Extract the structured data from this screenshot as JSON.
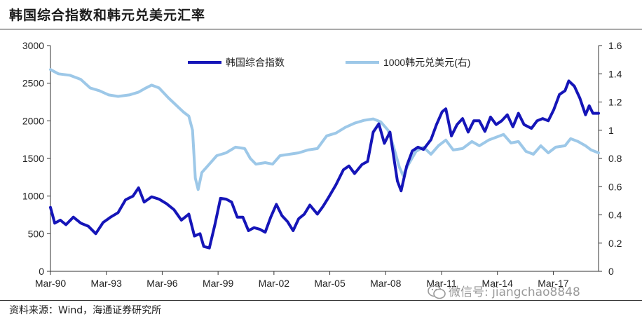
{
  "title": "韩国综合指数和韩元兑美元汇率",
  "source": "资料来源：Wind，海通证券研究所",
  "watermark": "微信号: jiangchao8848",
  "chart_data": {
    "type": "line",
    "x_ticks": [
      "Mar-90",
      "Mar-93",
      "Mar-96",
      "Mar-99",
      "Mar-02",
      "Mar-05",
      "Mar-08",
      "Mar-11",
      "Mar-14",
      "Mar-17"
    ],
    "x_tick_years": [
      1990.17,
      1993.17,
      1996.17,
      1999.17,
      2002.17,
      2005.17,
      2008.17,
      2011.17,
      2014.17,
      2017.17
    ],
    "xlim": [
      1990.17,
      2019.6
    ],
    "y_left": {
      "ticks": [
        "0",
        "500",
        "1000",
        "1500",
        "2000",
        "2500",
        "3000"
      ],
      "range": [
        0,
        3000
      ]
    },
    "y_right": {
      "ticks": [
        "0",
        "0.2",
        "0.4",
        "0.6",
        "0.8",
        "1",
        "1.2",
        "1.4",
        "1.6"
      ],
      "range": [
        0,
        1.6
      ]
    },
    "legend": {
      "position": "top-center"
    },
    "series": [
      {
        "name": "韩国综合指数",
        "axis": "left",
        "color": "#1515b8",
        "points": [
          [
            1990.17,
            850
          ],
          [
            1990.4,
            640
          ],
          [
            1990.7,
            680
          ],
          [
            1991.0,
            620
          ],
          [
            1991.4,
            720
          ],
          [
            1991.8,
            640
          ],
          [
            1992.2,
            600
          ],
          [
            1992.6,
            500
          ],
          [
            1993.0,
            650
          ],
          [
            1993.4,
            720
          ],
          [
            1993.8,
            780
          ],
          [
            1994.2,
            950
          ],
          [
            1994.6,
            1000
          ],
          [
            1994.9,
            1110
          ],
          [
            1995.2,
            920
          ],
          [
            1995.6,
            990
          ],
          [
            1996.0,
            960
          ],
          [
            1996.4,
            900
          ],
          [
            1996.8,
            820
          ],
          [
            1997.2,
            680
          ],
          [
            1997.6,
            760
          ],
          [
            1997.9,
            470
          ],
          [
            1998.2,
            500
          ],
          [
            1998.4,
            330
          ],
          [
            1998.7,
            310
          ],
          [
            1999.0,
            620
          ],
          [
            1999.3,
            970
          ],
          [
            1999.6,
            960
          ],
          [
            1999.9,
            920
          ],
          [
            2000.2,
            720
          ],
          [
            2000.5,
            720
          ],
          [
            2000.8,
            540
          ],
          [
            2001.1,
            580
          ],
          [
            2001.4,
            560
          ],
          [
            2001.7,
            520
          ],
          [
            2002.0,
            720
          ],
          [
            2002.3,
            890
          ],
          [
            2002.6,
            740
          ],
          [
            2002.9,
            660
          ],
          [
            2003.2,
            540
          ],
          [
            2003.5,
            700
          ],
          [
            2003.8,
            760
          ],
          [
            2004.1,
            880
          ],
          [
            2004.5,
            760
          ],
          [
            2004.8,
            860
          ],
          [
            2005.1,
            980
          ],
          [
            2005.5,
            1150
          ],
          [
            2005.9,
            1350
          ],
          [
            2006.2,
            1400
          ],
          [
            2006.5,
            1300
          ],
          [
            2006.9,
            1420
          ],
          [
            2007.2,
            1460
          ],
          [
            2007.5,
            1850
          ],
          [
            2007.8,
            1960
          ],
          [
            2008.1,
            1700
          ],
          [
            2008.4,
            1850
          ],
          [
            2008.8,
            1200
          ],
          [
            2009.0,
            1070
          ],
          [
            2009.3,
            1400
          ],
          [
            2009.6,
            1600
          ],
          [
            2009.9,
            1650
          ],
          [
            2010.2,
            1620
          ],
          [
            2010.6,
            1750
          ],
          [
            2010.9,
            1950
          ],
          [
            2011.2,
            2120
          ],
          [
            2011.4,
            2160
          ],
          [
            2011.7,
            1800
          ],
          [
            2012.0,
            1950
          ],
          [
            2012.3,
            2030
          ],
          [
            2012.6,
            1850
          ],
          [
            2012.9,
            2000
          ],
          [
            2013.2,
            2000
          ],
          [
            2013.5,
            1860
          ],
          [
            2013.8,
            2050
          ],
          [
            2014.1,
            1950
          ],
          [
            2014.4,
            2000
          ],
          [
            2014.7,
            2080
          ],
          [
            2015.0,
            1920
          ],
          [
            2015.3,
            2100
          ],
          [
            2015.6,
            1950
          ],
          [
            2016.0,
            1900
          ],
          [
            2016.3,
            2000
          ],
          [
            2016.6,
            2030
          ],
          [
            2016.9,
            2000
          ],
          [
            2017.2,
            2150
          ],
          [
            2017.5,
            2350
          ],
          [
            2017.8,
            2400
          ],
          [
            2018.0,
            2530
          ],
          [
            2018.3,
            2460
          ],
          [
            2018.6,
            2300
          ],
          [
            2018.9,
            2080
          ],
          [
            2019.1,
            2200
          ],
          [
            2019.3,
            2100
          ],
          [
            2019.6,
            2100
          ]
        ]
      },
      {
        "name": "1000韩元兑美元(右)",
        "axis": "right",
        "color": "#9dc8e8",
        "points": [
          [
            1990.17,
            1.43
          ],
          [
            1990.6,
            1.4
          ],
          [
            1991.2,
            1.39
          ],
          [
            1991.8,
            1.36
          ],
          [
            1992.3,
            1.3
          ],
          [
            1992.8,
            1.28
          ],
          [
            1993.3,
            1.25
          ],
          [
            1993.8,
            1.24
          ],
          [
            1994.4,
            1.25
          ],
          [
            1994.9,
            1.27
          ],
          [
            1995.3,
            1.3
          ],
          [
            1995.6,
            1.32
          ],
          [
            1996.0,
            1.3
          ],
          [
            1996.5,
            1.23
          ],
          [
            1996.9,
            1.18
          ],
          [
            1997.3,
            1.13
          ],
          [
            1997.6,
            1.1
          ],
          [
            1997.8,
            1.0
          ],
          [
            1997.95,
            0.66
          ],
          [
            1998.1,
            0.58
          ],
          [
            1998.3,
            0.7
          ],
          [
            1998.7,
            0.76
          ],
          [
            1999.1,
            0.82
          ],
          [
            1999.6,
            0.84
          ],
          [
            2000.1,
            0.88
          ],
          [
            2000.6,
            0.87
          ],
          [
            2000.9,
            0.8
          ],
          [
            2001.2,
            0.76
          ],
          [
            2001.7,
            0.77
          ],
          [
            2002.1,
            0.76
          ],
          [
            2002.5,
            0.82
          ],
          [
            2003.0,
            0.83
          ],
          [
            2003.5,
            0.84
          ],
          [
            2004.0,
            0.86
          ],
          [
            2004.5,
            0.87
          ],
          [
            2005.0,
            0.96
          ],
          [
            2005.5,
            0.98
          ],
          [
            2006.0,
            1.02
          ],
          [
            2006.5,
            1.05
          ],
          [
            2007.0,
            1.07
          ],
          [
            2007.5,
            1.08
          ],
          [
            2007.9,
            1.06
          ],
          [
            2008.3,
            1.0
          ],
          [
            2008.6,
            0.88
          ],
          [
            2008.9,
            0.74
          ],
          [
            2009.1,
            0.68
          ],
          [
            2009.4,
            0.76
          ],
          [
            2009.8,
            0.85
          ],
          [
            2010.2,
            0.88
          ],
          [
            2010.6,
            0.83
          ],
          [
            2011.0,
            0.89
          ],
          [
            2011.4,
            0.93
          ],
          [
            2011.8,
            0.86
          ],
          [
            2012.3,
            0.87
          ],
          [
            2012.8,
            0.92
          ],
          [
            2013.2,
            0.89
          ],
          [
            2013.7,
            0.93
          ],
          [
            2014.1,
            0.95
          ],
          [
            2014.5,
            0.97
          ],
          [
            2014.9,
            0.91
          ],
          [
            2015.3,
            0.92
          ],
          [
            2015.7,
            0.85
          ],
          [
            2016.1,
            0.83
          ],
          [
            2016.5,
            0.89
          ],
          [
            2016.9,
            0.84
          ],
          [
            2017.3,
            0.88
          ],
          [
            2017.8,
            0.89
          ],
          [
            2018.1,
            0.94
          ],
          [
            2018.5,
            0.92
          ],
          [
            2018.9,
            0.89
          ],
          [
            2019.2,
            0.86
          ],
          [
            2019.6,
            0.84
          ]
        ]
      }
    ]
  }
}
